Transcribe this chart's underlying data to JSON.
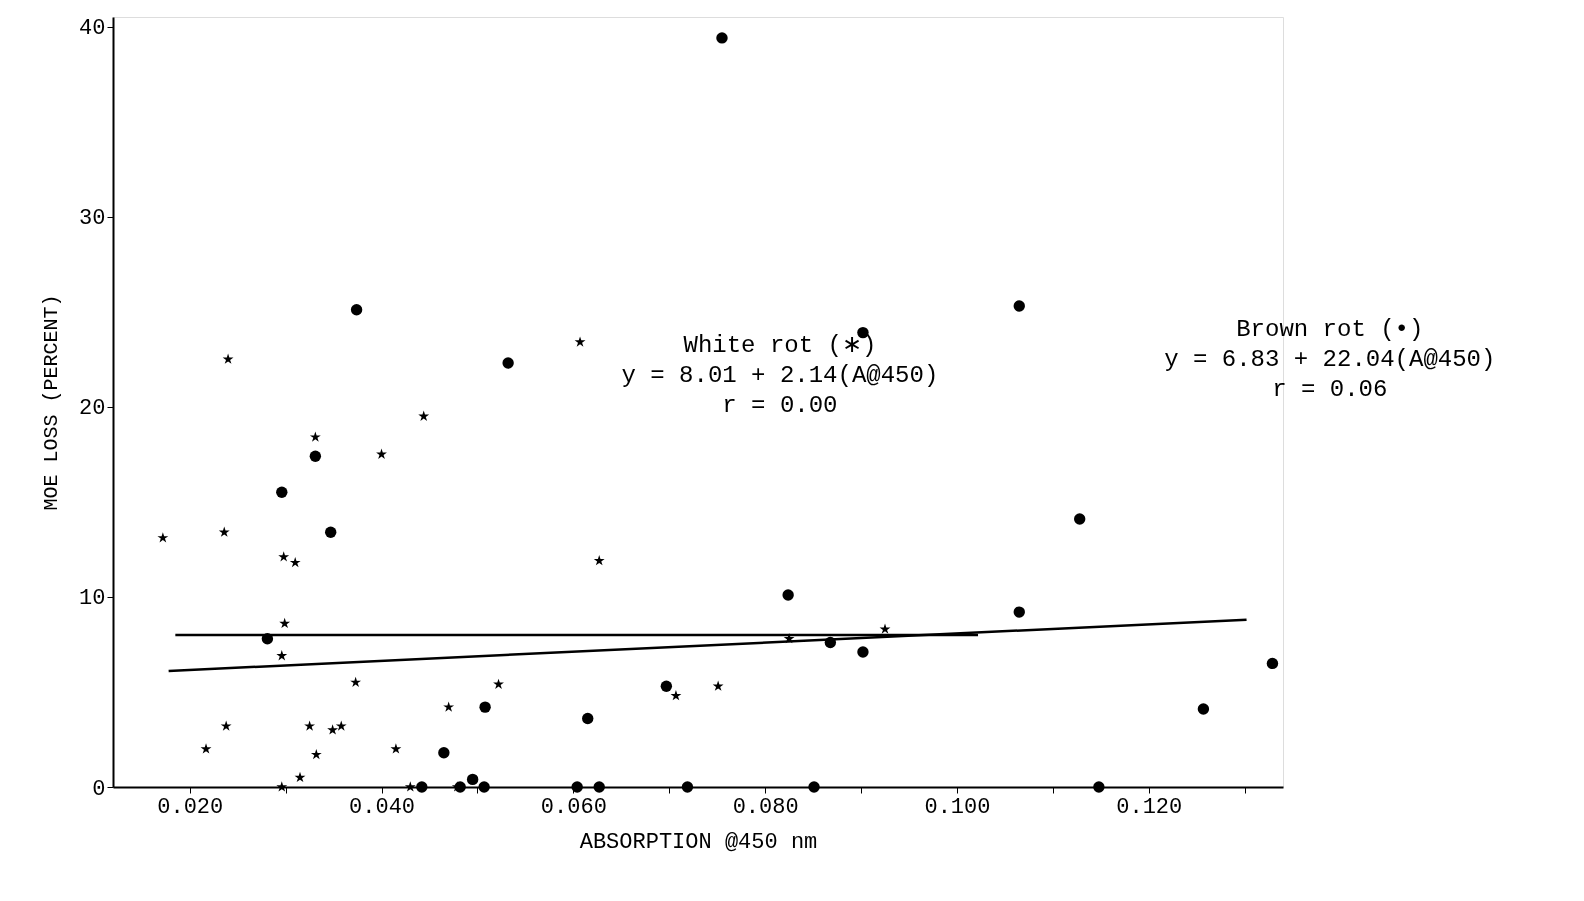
{
  "chart_data": {
    "type": "scatter",
    "xlabel": "ABSORPTION @450 nm",
    "ylabel": "MOE LOSS (PERCENT)",
    "xlim": [
      0.012,
      0.134
    ],
    "ylim": [
      0,
      40.5
    ],
    "xticks": [
      {
        "value": 0.02,
        "label": "0.020"
      },
      {
        "value": 0.03,
        "label": null
      },
      {
        "value": 0.04,
        "label": "0.040"
      },
      {
        "value": 0.05,
        "label": null
      },
      {
        "value": 0.06,
        "label": "0.060"
      },
      {
        "value": 0.07,
        "label": null
      },
      {
        "value": 0.08,
        "label": "0.080"
      },
      {
        "value": 0.09,
        "label": null
      },
      {
        "value": 0.1,
        "label": "0.100"
      },
      {
        "value": 0.11,
        "label": null
      },
      {
        "value": 0.12,
        "label": "0.120"
      },
      {
        "value": 0.13,
        "label": null
      }
    ],
    "yticks": [
      0,
      10,
      20,
      30,
      40
    ],
    "grid": false,
    "series": [
      {
        "marker": "star",
        "color": "#000000",
        "x": [
          0.0172,
          0.024,
          0.0236,
          0.0217,
          0.0238,
          0.0298,
          0.031,
          0.0299,
          0.0296,
          0.0296,
          0.0315,
          0.0331,
          0.0332,
          0.0325,
          0.0349,
          0.0358,
          0.0373,
          0.04,
          0.0415,
          0.0444,
          0.043,
          0.047,
          0.0522,
          0.0479,
          0.0607,
          0.0627,
          0.0707,
          0.0751,
          0.0825,
          0.0925
        ],
        "values": [
          13.1,
          22.5,
          13.4,
          2.0,
          3.2,
          12.1,
          11.8,
          8.6,
          6.9,
          0,
          0.5,
          18.4,
          1.7,
          3.2,
          3.0,
          3.2,
          5.5,
          17.5,
          2.0,
          19.5,
          0,
          4.2,
          5.4,
          0,
          23.4,
          11.9,
          4.8,
          5.3,
          7.8,
          8.3
        ]
      },
      {
        "marker": "circle",
        "color": "#000000",
        "x": [
          0.0755,
          0.0374,
          0.0532,
          0.0902,
          0.1065,
          0.0296,
          0.0331,
          0.0347,
          0.0281,
          0.1128,
          0.0824,
          0.1065,
          0.0868,
          0.0902,
          0.1329,
          0.1257,
          0.0508,
          0.0615,
          0.0697,
          0.0465,
          0.0495,
          0.0442,
          0.0482,
          0.0507,
          0.0604,
          0.0627,
          0.0719,
          0.0851,
          0.1148
        ],
        "values": [
          39.4,
          25.1,
          22.3,
          23.9,
          25.3,
          15.5,
          17.4,
          13.4,
          7.8,
          14.1,
          10.1,
          9.2,
          7.6,
          7.1,
          6.5,
          4.1,
          4.2,
          3.6,
          5.3,
          1.8,
          0.4,
          0,
          0,
          0,
          0,
          0,
          0,
          0,
          0
        ]
      },
      {
        "type": "line",
        "marker": "none",
        "line_style": "solid",
        "color": "#000000",
        "x": [
          0.0185,
          0.1022
        ],
        "values": [
          8.0,
          8.0
        ]
      },
      {
        "type": "line",
        "marker": "none",
        "line_style": "solid",
        "color": "#000000",
        "x": [
          0.0178,
          0.1302
        ],
        "values": [
          6.1,
          8.8
        ]
      }
    ],
    "annotations": [
      {
        "text": "White rot (∗)\ny = 8.01 + 2.14(A@450)\nr = 0.00"
      },
      {
        "text": "Brown rot (•)\ny = 6.83 + 22.04(A@450)\nr = 0.06"
      }
    ]
  }
}
